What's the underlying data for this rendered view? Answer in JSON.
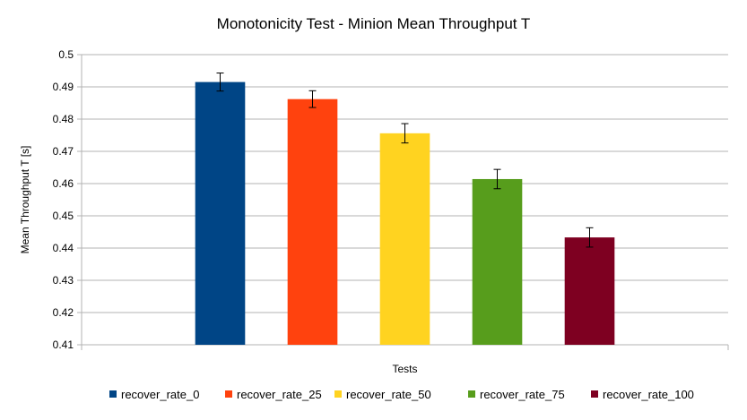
{
  "chart_data": {
    "type": "bar",
    "title": "Monotonicity Test - Minion Mean Throughput T",
    "xlabel": "Tests",
    "ylabel": "Mean Throughput T [s]",
    "ylim": [
      0.41,
      0.5
    ],
    "yticks": [
      "0.41",
      "0.42",
      "0.43",
      "0.44",
      "0.45",
      "0.46",
      "0.47",
      "0.48",
      "0.49",
      "0.5"
    ],
    "grid": true,
    "legend_position": "bottom",
    "series": [
      {
        "name": "recover_rate_0",
        "value": 0.4915,
        "error": 0.0028,
        "color": "#004586"
      },
      {
        "name": "recover_rate_25",
        "value": 0.4862,
        "error": 0.0026,
        "color": "#ff420e"
      },
      {
        "name": "recover_rate_50",
        "value": 0.4756,
        "error": 0.003,
        "color": "#ffd320"
      },
      {
        "name": "recover_rate_75",
        "value": 0.4614,
        "error": 0.003,
        "color": "#579d1c"
      },
      {
        "name": "recover_rate_100",
        "value": 0.4433,
        "error": 0.003,
        "color": "#7e0021"
      }
    ]
  }
}
